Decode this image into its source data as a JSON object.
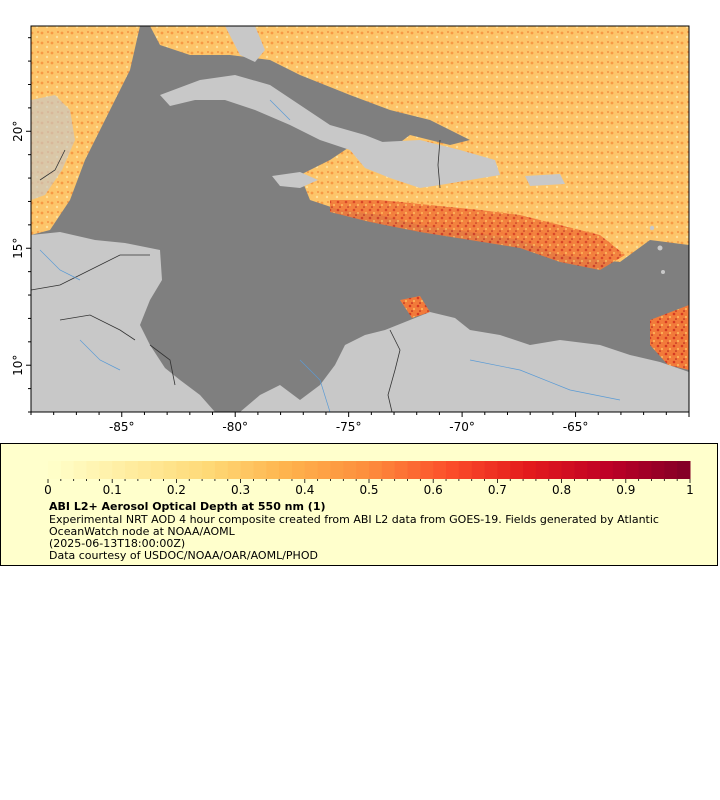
{
  "map": {
    "x_axis_labels": [
      "-85°",
      "-80°",
      "-75°",
      "-70°",
      "-65°"
    ],
    "x_axis_values": [
      -85,
      -80,
      -75,
      -70,
      -65
    ],
    "y_axis_labels": [
      "20°",
      "15°",
      "10°"
    ],
    "y_axis_values": [
      20,
      15,
      10
    ],
    "lon_range": [
      -89,
      -60
    ],
    "lat_range": [
      8,
      24.5
    ],
    "land_color": "#c8c8c8",
    "ocean_nodata_color": "#7f7f7f",
    "river_color": "#5b9bd5",
    "border_color": "#333333"
  },
  "legend": {
    "ticks": [
      "0",
      "0.1",
      "0.2",
      "0.3",
      "0.4",
      "0.5",
      "0.6",
      "0.7",
      "0.8",
      "0.9",
      "1"
    ],
    "range": [
      0,
      1
    ],
    "colors": [
      "#ffffcc",
      "#ffeda0",
      "#fed976",
      "#feb24c",
      "#fd8d3c",
      "#fc4e2a",
      "#e31a1c",
      "#bd0026",
      "#800026"
    ],
    "title": "ABI L2+ Aerosol Optical Depth at 550 nm (1)",
    "description": "Experimental NRT AOD 4 hour composite created from ABI L2 data from GOES-19. Fields generated by Atlantic OceanWatch node at NOAA/AOML",
    "timestamp": "(2025-06-13T18:00:00Z)",
    "credit": "Data courtesy of USDOC/NOAA/OAR/AOML/PHOD"
  }
}
